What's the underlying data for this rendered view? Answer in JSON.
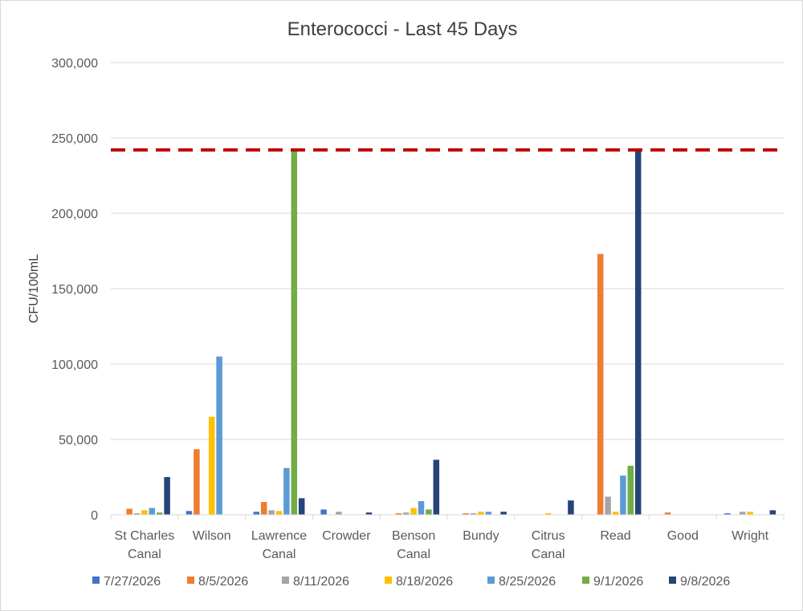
{
  "chart_data": {
    "type": "bar",
    "title": "Enterococci - Last 45 Days",
    "xlabel": "",
    "ylabel": "CFU/100mL",
    "ylim": [
      0,
      300000
    ],
    "yticks": [
      0,
      50000,
      100000,
      150000,
      200000,
      250000,
      300000
    ],
    "ytick_labels": [
      "0",
      "50,000",
      "100,000",
      "150,000",
      "200,000",
      "250,000",
      "300,000"
    ],
    "grid": true,
    "legend_position": "bottom",
    "categories": [
      [
        "St Charles",
        "Canal"
      ],
      [
        "Wilson"
      ],
      [
        "Lawrence",
        "Canal"
      ],
      [
        "Crowder"
      ],
      [
        "Benson",
        "Canal"
      ],
      [
        "Bundy"
      ],
      [
        "Citrus",
        "Canal"
      ],
      [
        "Read"
      ],
      [
        "Good"
      ],
      [
        "Wright"
      ]
    ],
    "series": [
      {
        "name": "7/27/2026",
        "color": "#4472c4",
        "values": [
          0,
          2500,
          2000,
          3500,
          0,
          0,
          0,
          0,
          0,
          1000
        ]
      },
      {
        "name": "8/5/2026",
        "color": "#ed7d31",
        "values": [
          4000,
          43500,
          8500,
          0,
          1000,
          1000,
          0,
          173000,
          1500,
          0
        ]
      },
      {
        "name": "8/11/2026",
        "color": "#a5a5a5",
        "values": [
          1000,
          0,
          3000,
          2000,
          1500,
          1000,
          0,
          12000,
          0,
          2000
        ]
      },
      {
        "name": "8/18/2026",
        "color": "#ffc000",
        "values": [
          3000,
          65000,
          2500,
          0,
          4500,
          2000,
          1000,
          2000,
          0,
          2000
        ]
      },
      {
        "name": "8/25/2026",
        "color": "#5b9bd5",
        "values": [
          4500,
          105000,
          31000,
          0,
          9000,
          2000,
          0,
          26000,
          0,
          0
        ]
      },
      {
        "name": "9/1/2026",
        "color": "#70ad47",
        "values": [
          1500,
          0,
          242000,
          0,
          3500,
          0,
          0,
          32500,
          0,
          0
        ]
      },
      {
        "name": "9/8/2026",
        "color": "#264478",
        "values": [
          25000,
          0,
          11000,
          1500,
          36500,
          2000,
          9500,
          242000,
          0,
          3000
        ]
      }
    ],
    "threshold": {
      "value": 242000,
      "color": "#c00000",
      "style": "dashed"
    }
  }
}
